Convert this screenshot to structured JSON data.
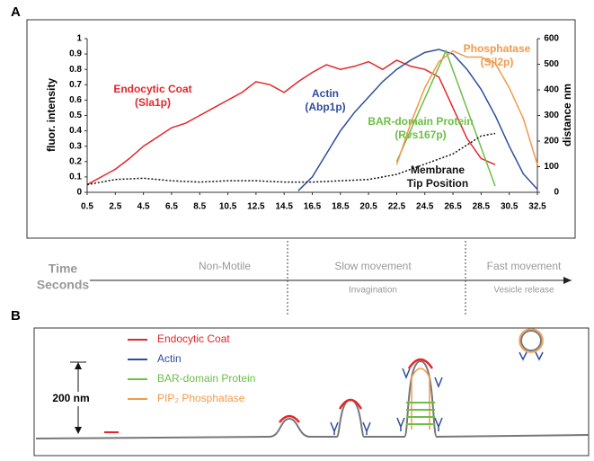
{
  "panel_a_label": "A",
  "panel_b_label": "B",
  "chart_data": {
    "type": "line",
    "ylabel": "fluor. intensity",
    "y2label": "distance nm",
    "xlim": [
      0.5,
      32.5
    ],
    "xticks": [
      0.5,
      2.5,
      4.5,
      6.5,
      8.5,
      10.5,
      12.5,
      14.5,
      16.5,
      18.5,
      20.5,
      22.5,
      24.5,
      26.5,
      28.5,
      30.5,
      32.5
    ],
    "ylim": [
      0,
      1
    ],
    "yticks": [
      0,
      0.1,
      0.2,
      0.3,
      0.4,
      0.5,
      0.6,
      0.7,
      0.8,
      0.9,
      1
    ],
    "y2lim": [
      0,
      600
    ],
    "y2ticks": [
      0,
      100,
      200,
      300,
      400,
      500,
      600
    ],
    "series": [
      {
        "label": [
          "Endocytic Coat",
          "(Sla1p)"
        ],
        "color": "#e3262a",
        "x": [
          0.5,
          1.5,
          2.5,
          3.5,
          4.5,
          5.5,
          6.5,
          7.5,
          8.5,
          9.5,
          10.5,
          11.5,
          12.5,
          13.5,
          14.5,
          15.5,
          16.5,
          17.5,
          18.5,
          19.5,
          20.5,
          21.5,
          22.5,
          23.5,
          24.5,
          25.5,
          26.5,
          27.5,
          28.5,
          29.5
        ],
        "values": [
          0.05,
          0.1,
          0.15,
          0.22,
          0.3,
          0.36,
          0.42,
          0.45,
          0.5,
          0.55,
          0.6,
          0.65,
          0.72,
          0.7,
          0.65,
          0.72,
          0.78,
          0.83,
          0.8,
          0.82,
          0.85,
          0.8,
          0.86,
          0.82,
          0.8,
          0.75,
          0.55,
          0.35,
          0.22,
          0.18
        ]
      },
      {
        "label": [
          "Actin",
          "(Abp1p)"
        ],
        "color": "#2f4d9e",
        "x": [
          15.5,
          16.5,
          17.5,
          18.5,
          19.5,
          20.5,
          21.5,
          22.5,
          23.5,
          24.5,
          25.5,
          26.5,
          27.5,
          28.5,
          29.5,
          30.5,
          31.5,
          32.5
        ],
        "values": [
          0.01,
          0.1,
          0.25,
          0.4,
          0.52,
          0.62,
          0.72,
          0.8,
          0.86,
          0.91,
          0.93,
          0.9,
          0.8,
          0.67,
          0.5,
          0.3,
          0.12,
          0.02
        ]
      },
      {
        "label": [
          "BAR-domain Protein",
          "(Rvs167p)"
        ],
        "color": "#6cbf45",
        "x": [
          22.5,
          26,
          29.5
        ],
        "values": [
          0.2,
          0.92,
          0.04
        ]
      },
      {
        "label": [
          "Phosphatase",
          "(Sjl2p)"
        ],
        "color": "#f29a4a",
        "x": [
          22.5,
          23.5,
          24.5,
          25.5,
          26.5,
          27.5,
          28.5,
          29.5,
          30.5,
          31.5,
          32.5
        ],
        "values": [
          0.18,
          0.45,
          0.68,
          0.85,
          0.92,
          0.88,
          0.88,
          0.84,
          0.68,
          0.48,
          0.18
        ]
      },
      {
        "label": [
          "Membrane",
          "Tip Position"
        ],
        "color": "#111111",
        "line_style": "dotted",
        "axis": "y2",
        "x": [
          0.5,
          2.5,
          4.5,
          6.5,
          8.5,
          10.5,
          12.5,
          14.5,
          16.5,
          18.5,
          20.5,
          22.5,
          24.5,
          26.5,
          28.5,
          29.5
        ],
        "values": [
          30,
          50,
          55,
          45,
          40,
          45,
          45,
          40,
          40,
          45,
          50,
          70,
          110,
          150,
          220,
          230
        ]
      }
    ]
  },
  "timeline": {
    "title": [
      "Time",
      "Seconds"
    ],
    "phases": [
      {
        "name": "Non-Motile"
      },
      {
        "name": "Slow movement",
        "sub": "Invagination"
      },
      {
        "name": "Fast movement",
        "sub": "Vesicle release"
      }
    ]
  },
  "diagram": {
    "legend": [
      {
        "text": "Endocytic Coat",
        "color": "#e3262a"
      },
      {
        "text": "Actin",
        "color": "#2f4d9e"
      },
      {
        "text": "BAR-domain Protein",
        "color": "#6cbf45"
      },
      {
        "text": "PIP₂ Phosphatase",
        "color": "#f29a4a"
      }
    ],
    "scale": "200 nm"
  }
}
